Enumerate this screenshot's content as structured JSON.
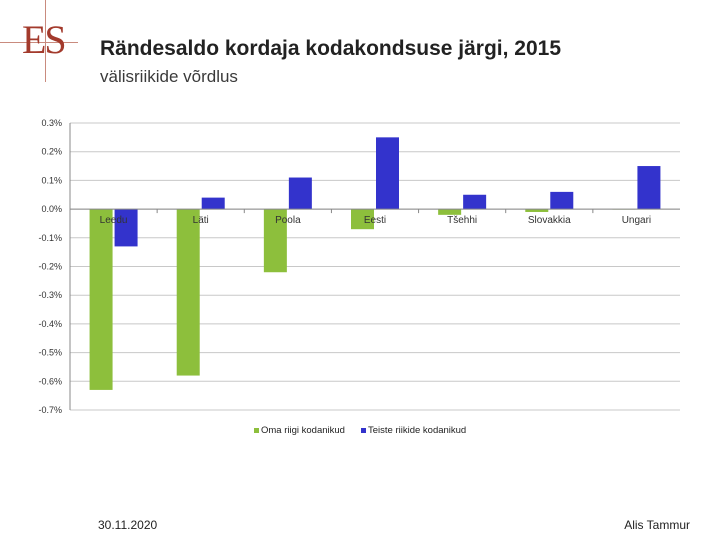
{
  "header": {
    "logo_text": "ES",
    "title": "Rändesaldo kordaja kodakondsuse järgi, 2015",
    "subtitle": "välisriikide võrdlus"
  },
  "footer": {
    "date": "30.11.2020",
    "author": "Alis Tammur"
  },
  "colors": {
    "series1": "#8dbf3c",
    "series2": "#3333cc",
    "grid": "#c8c8c8",
    "axis": "#888888"
  },
  "chart_data": {
    "type": "bar",
    "title": "Rändesaldo kordaja kodakondsuse järgi, 2015",
    "xlabel": "",
    "ylabel": "",
    "ylim": [
      -0.7,
      0.3
    ],
    "yticks": [
      0.3,
      0.2,
      0.1,
      0.0,
      -0.1,
      -0.2,
      -0.3,
      -0.4,
      -0.5,
      -0.6,
      -0.7
    ],
    "ytick_labels": [
      "0.3%",
      "0.2%",
      "0.1%",
      "0.0%",
      "-0.1%",
      "-0.2%",
      "-0.3%",
      "-0.4%",
      "-0.5%",
      "-0.6%",
      "-0.7%"
    ],
    "categories": [
      "Leedu",
      "Läti",
      "Poola",
      "Eesti",
      "Tšehhi",
      "Slovakkia",
      "Ungari"
    ],
    "series": [
      {
        "name": "Oma riigi kodanikud",
        "values": [
          -0.63,
          -0.58,
          -0.22,
          -0.07,
          -0.02,
          -0.01,
          0.0
        ]
      },
      {
        "name": "Teiste riikide kodanikud",
        "values": [
          -0.13,
          0.04,
          0.11,
          0.25,
          0.05,
          0.06,
          0.15
        ]
      }
    ],
    "legend_position": "bottom",
    "grid": true
  }
}
